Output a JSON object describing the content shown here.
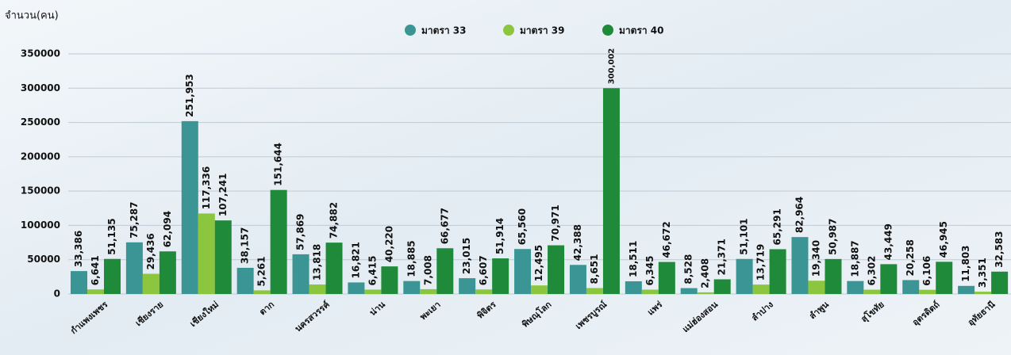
{
  "chart_data": {
    "type": "bar",
    "y_axis_label": "จำนวน(คน)",
    "categories": [
      "กำแพงเพชร",
      "เชียงราย",
      "เชียงใหม่",
      "ตาก",
      "นครสวรรค์",
      "น่าน",
      "พะเยา",
      "พิจิตร",
      "พิษณุโลก",
      "เพชรบูรณ์",
      "แพร่",
      "แม่ฮ่องสอน",
      "ลำปาง",
      "ลำพูน",
      "สุโขทัย",
      "อุตรดิตถ์",
      "อุทัยธานี"
    ],
    "series": [
      {
        "name": "มาตรา 33",
        "color": "#3a9594",
        "values": [
          33386,
          75287,
          251953,
          38157,
          57869,
          16821,
          18885,
          23015,
          65560,
          42388,
          18511,
          8528,
          51101,
          82964,
          18887,
          20258,
          11803
        ],
        "value_labels": [
          "33,386",
          "75,287",
          "251,953",
          "38,157",
          "57,869",
          "16,821",
          "18,885",
          "23,015",
          "65,560",
          "42,388",
          "18,511",
          "8,528",
          "51,101",
          "82,964",
          "18,887",
          "20,258",
          "11,803"
        ]
      },
      {
        "name": "มาตรา 39",
        "color": "#8cc63f",
        "values": [
          6641,
          29436,
          117336,
          5261,
          13818,
          6415,
          7008,
          6607,
          12495,
          8651,
          6345,
          2408,
          13719,
          19340,
          6302,
          6106,
          3351
        ],
        "value_labels": [
          "6,641",
          "29,436",
          "117,336",
          "5,261",
          "13,818",
          "6,415",
          "7,008",
          "6,607",
          "12,495",
          "8,651",
          "6,345",
          "2,408",
          "13,719",
          "19,340",
          "6,302",
          "6,106",
          "3,351"
        ]
      },
      {
        "name": "มาตรา 40",
        "color": "#1e8a3a",
        "values": [
          51135,
          62094,
          107241,
          151644,
          74882,
          40220,
          66677,
          51914,
          70971,
          300002,
          46672,
          21371,
          65291,
          50987,
          43449,
          46945,
          32583
        ],
        "value_labels": [
          "51,135",
          "62,094",
          "107,241",
          "151,644",
          "74,882",
          "40,220",
          "66,677",
          "51,914",
          "70,971",
          "300,002",
          "46,672",
          "21,371",
          "65,291",
          "50,987",
          "43,449",
          "46,945",
          "32,583"
        ]
      }
    ],
    "ylim": [
      0,
      350000
    ],
    "yticks": [
      0,
      50000,
      100000,
      150000,
      200000,
      250000,
      300000,
      350000
    ],
    "grid": true,
    "legend": "top"
  }
}
